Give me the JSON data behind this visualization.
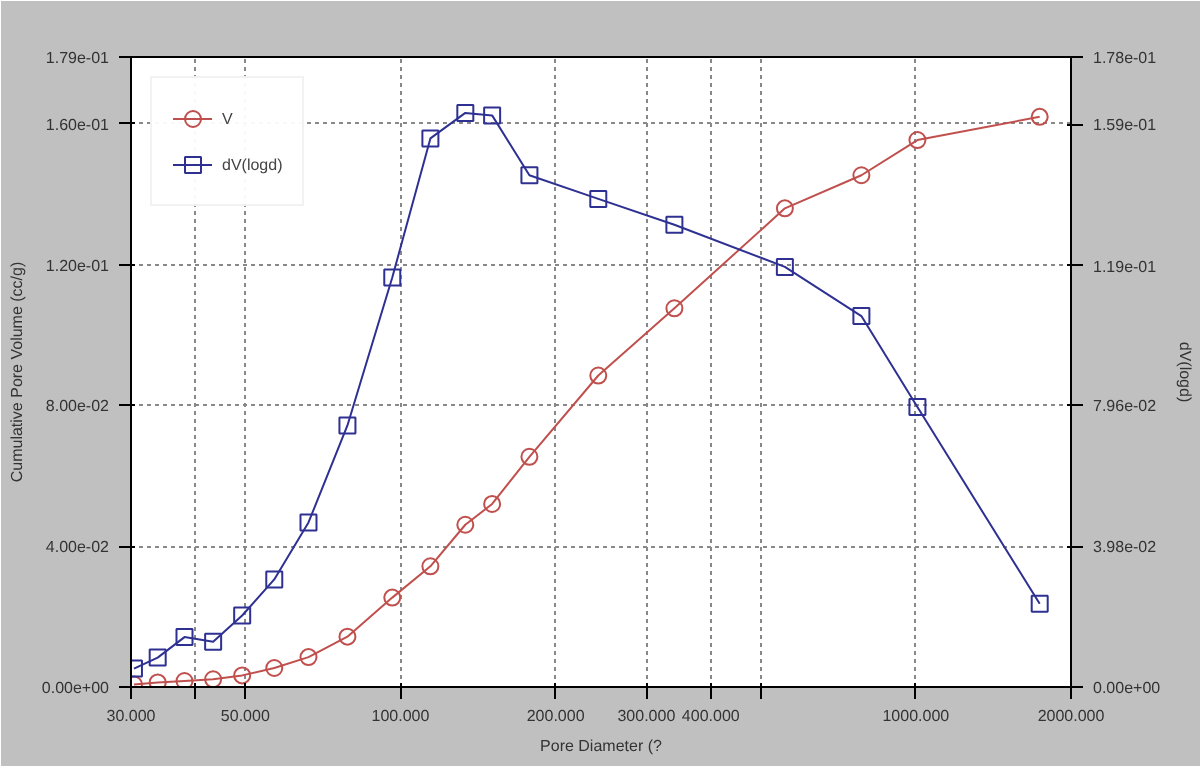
{
  "chart_data": {
    "type": "line",
    "xlabel": "Pore Diameter (?",
    "ylabel": "Cumulative Pore Volume (cc/g)",
    "y2label": "dV(logd)",
    "log": "x",
    "grid": true,
    "legend": "top left",
    "line_style": "solid",
    "xlim": [
      30,
      2000
    ],
    "xticks": [
      {
        "value": 30,
        "label": "30.000"
      },
      {
        "value": 40,
        "label": null
      },
      {
        "value": 50,
        "label": "50.000"
      },
      {
        "value": 100,
        "label": "100.000"
      },
      {
        "value": 200,
        "label": "200.000"
      },
      {
        "value": 300,
        "label": "300.000"
      },
      {
        "value": 400,
        "label": "400.000"
      },
      {
        "value": 500,
        "label": null
      },
      {
        "value": 1000,
        "label": "1000.000"
      },
      {
        "value": 2000,
        "label": "2000.000"
      }
    ],
    "ylim": [
      0,
      0.179
    ],
    "yticks": [
      {
        "value": 0,
        "label": "0.00e+00"
      },
      {
        "value": 0.04,
        "label": "4.00e-02"
      },
      {
        "value": 0.08,
        "label": "8.00e-02"
      },
      {
        "value": 0.12,
        "label": "1.20e-01"
      },
      {
        "value": 0.16,
        "label": "1.60e-01"
      },
      {
        "value": 0.179,
        "label": "1.79e-01"
      }
    ],
    "y2lim": [
      0,
      0.178
    ],
    "y2ticks": [
      {
        "value": 0,
        "label": "0.00e+00"
      },
      {
        "value": 0.0398,
        "label": "3.98e-02"
      },
      {
        "value": 0.0796,
        "label": "7.96e-02"
      },
      {
        "value": 0.119,
        "label": "1.19e-01"
      },
      {
        "value": 0.159,
        "label": "1.59e-01"
      },
      {
        "value": 0.178,
        "label": "1.78e-01"
      }
    ],
    "x": [
      30.4,
      33.8,
      38.1,
      43.3,
      49.3,
      56.9,
      66.3,
      78.9,
      96.4,
      114.3,
      133.6,
      150.6,
      177.9,
      242,
      340,
      557,
      784,
      1007,
      1739
    ],
    "series": [
      {
        "name": "V",
        "color": "#c0504d",
        "marker": "circle",
        "values": [
          0.0007,
          0.0013,
          0.0017,
          0.0022,
          0.0033,
          0.0054,
          0.0085,
          0.0143,
          0.0254,
          0.0343,
          0.0461,
          0.052,
          0.0654,
          0.0885,
          0.1076,
          0.136,
          0.1454,
          0.1554,
          0.162
        ]
      },
      {
        "name": "dV(logd)",
        "color": "#2e3192",
        "marker": "square",
        "axis": "y2",
        "values": [
          0.0052,
          0.0083,
          0.0141,
          0.0128,
          0.0202,
          0.0304,
          0.0465,
          0.0739,
          0.1157,
          0.155,
          0.1622,
          0.1615,
          0.1446,
          0.1379,
          0.1306,
          0.1187,
          0.1048,
          0.0791,
          0.0235
        ]
      }
    ]
  }
}
